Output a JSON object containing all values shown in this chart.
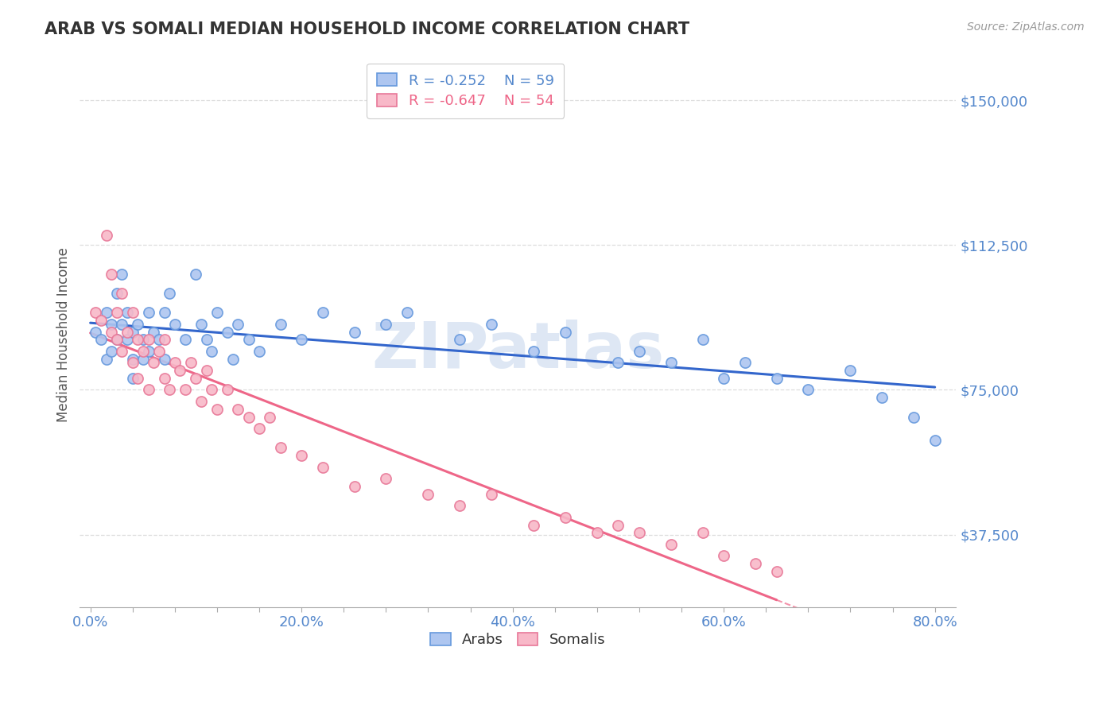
{
  "title": "ARAB VS SOMALI MEDIAN HOUSEHOLD INCOME CORRELATION CHART",
  "source": "Source: ZipAtlas.com",
  "ylabel": "Median Household Income",
  "xlim": [
    -0.01,
    0.82
  ],
  "ylim": [
    18750,
    160000
  ],
  "yticks": [
    37500,
    75000,
    112500,
    150000
  ],
  "ytick_labels": [
    "$37,500",
    "$75,000",
    "$112,500",
    "$150,000"
  ],
  "xtick_labels": [
    "0.0%",
    "",
    "",
    "",
    "",
    "20.0%",
    "",
    "",
    "",
    "",
    "40.0%",
    "",
    "",
    "",
    "",
    "60.0%",
    "",
    "",
    "",
    "",
    "80.0%"
  ],
  "xticks": [
    0.0,
    0.04,
    0.08,
    0.12,
    0.16,
    0.2,
    0.24,
    0.28,
    0.32,
    0.36,
    0.4,
    0.44,
    0.48,
    0.52,
    0.56,
    0.6,
    0.64,
    0.68,
    0.72,
    0.76,
    0.8
  ],
  "arab_color": "#aec6f0",
  "somali_color": "#f8b8c8",
  "arab_edge_color": "#6699dd",
  "somali_edge_color": "#e87898",
  "arab_line_color": "#3366cc",
  "somali_line_color": "#ee6688",
  "legend_arab_R": "-0.252",
  "legend_arab_N": "59",
  "legend_somali_R": "-0.647",
  "legend_somali_N": "54",
  "legend_label_arab": "Arabs",
  "legend_label_somali": "Somalis",
  "watermark": "ZIPatlas",
  "watermark_color": "#c8d8ee",
  "axis_color": "#5588cc",
  "grid_color": "#dddddd",
  "background_color": "#ffffff",
  "arab_x": [
    0.005,
    0.01,
    0.015,
    0.015,
    0.02,
    0.02,
    0.025,
    0.025,
    0.03,
    0.03,
    0.035,
    0.035,
    0.04,
    0.04,
    0.04,
    0.045,
    0.05,
    0.05,
    0.055,
    0.055,
    0.06,
    0.065,
    0.07,
    0.07,
    0.075,
    0.08,
    0.09,
    0.1,
    0.105,
    0.11,
    0.115,
    0.12,
    0.13,
    0.135,
    0.14,
    0.15,
    0.16,
    0.18,
    0.2,
    0.22,
    0.25,
    0.28,
    0.3,
    0.35,
    0.38,
    0.42,
    0.45,
    0.5,
    0.52,
    0.55,
    0.58,
    0.6,
    0.62,
    0.65,
    0.68,
    0.72,
    0.75,
    0.78,
    0.8
  ],
  "arab_y": [
    90000,
    88000,
    95000,
    83000,
    92000,
    85000,
    100000,
    88000,
    105000,
    92000,
    88000,
    95000,
    83000,
    90000,
    78000,
    92000,
    88000,
    83000,
    95000,
    85000,
    90000,
    88000,
    95000,
    83000,
    100000,
    92000,
    88000,
    105000,
    92000,
    88000,
    85000,
    95000,
    90000,
    83000,
    92000,
    88000,
    85000,
    92000,
    88000,
    95000,
    90000,
    92000,
    95000,
    88000,
    92000,
    85000,
    90000,
    82000,
    85000,
    82000,
    88000,
    78000,
    82000,
    78000,
    75000,
    80000,
    73000,
    68000,
    62000
  ],
  "somali_x": [
    0.005,
    0.01,
    0.015,
    0.02,
    0.02,
    0.025,
    0.025,
    0.03,
    0.03,
    0.035,
    0.04,
    0.04,
    0.045,
    0.045,
    0.05,
    0.055,
    0.055,
    0.06,
    0.065,
    0.07,
    0.07,
    0.075,
    0.08,
    0.085,
    0.09,
    0.095,
    0.1,
    0.105,
    0.11,
    0.115,
    0.12,
    0.13,
    0.14,
    0.15,
    0.16,
    0.17,
    0.18,
    0.2,
    0.22,
    0.25,
    0.28,
    0.32,
    0.35,
    0.38,
    0.42,
    0.45,
    0.48,
    0.5,
    0.52,
    0.55,
    0.58,
    0.6,
    0.63,
    0.65
  ],
  "somali_y": [
    95000,
    93000,
    115000,
    90000,
    105000,
    88000,
    95000,
    100000,
    85000,
    90000,
    95000,
    82000,
    88000,
    78000,
    85000,
    88000,
    75000,
    82000,
    85000,
    78000,
    88000,
    75000,
    82000,
    80000,
    75000,
    82000,
    78000,
    72000,
    80000,
    75000,
    70000,
    75000,
    70000,
    68000,
    65000,
    68000,
    60000,
    58000,
    55000,
    50000,
    52000,
    48000,
    45000,
    48000,
    40000,
    42000,
    38000,
    40000,
    38000,
    35000,
    38000,
    32000,
    30000,
    28000
  ]
}
